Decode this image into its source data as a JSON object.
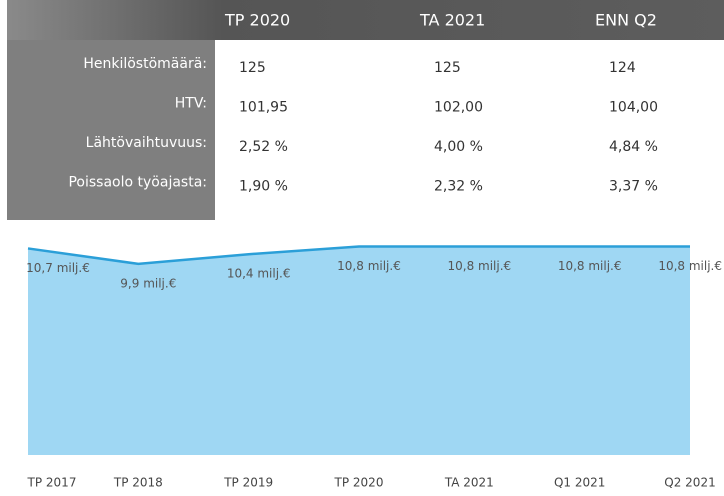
{
  "table": {
    "columns": [
      "TP 2020",
      "TA 2021",
      "ENN Q2"
    ],
    "rows": [
      {
        "label": "Henkilöstömäärä:",
        "values": [
          "125",
          "125",
          "124"
        ]
      },
      {
        "label": "HTV:",
        "values": [
          "101,95",
          "102,00",
          "104,00"
        ]
      },
      {
        "label": "Lähtövaihtuvuus:",
        "values": [
          "2,52 %",
          "4,00 %",
          "4,84 %"
        ]
      },
      {
        "label": "Poissaolo työajasta:",
        "values": [
          "1,90 %",
          "2,32 %",
          "3,37 %"
        ]
      }
    ]
  },
  "chart_data": {
    "type": "area",
    "categories": [
      "TP 2017",
      "TP 2018",
      "TP 2019",
      "TP 2020",
      "TA 2021",
      "Q1 2021",
      "Q2 2021"
    ],
    "values": [
      10.7,
      9.9,
      10.4,
      10.8,
      10.8,
      10.8,
      10.8
    ],
    "value_labels": [
      "10,7 milj.€",
      "9,9 milj.€",
      "10,4 milj.€",
      "10,8 milj.€",
      "10,8 milj.€",
      "10,8 milj.€",
      "10,8 milj.€"
    ],
    "ylim": [
      0,
      11.5
    ],
    "color": "#9fd7f3",
    "line_color": "#2b9fd8"
  }
}
